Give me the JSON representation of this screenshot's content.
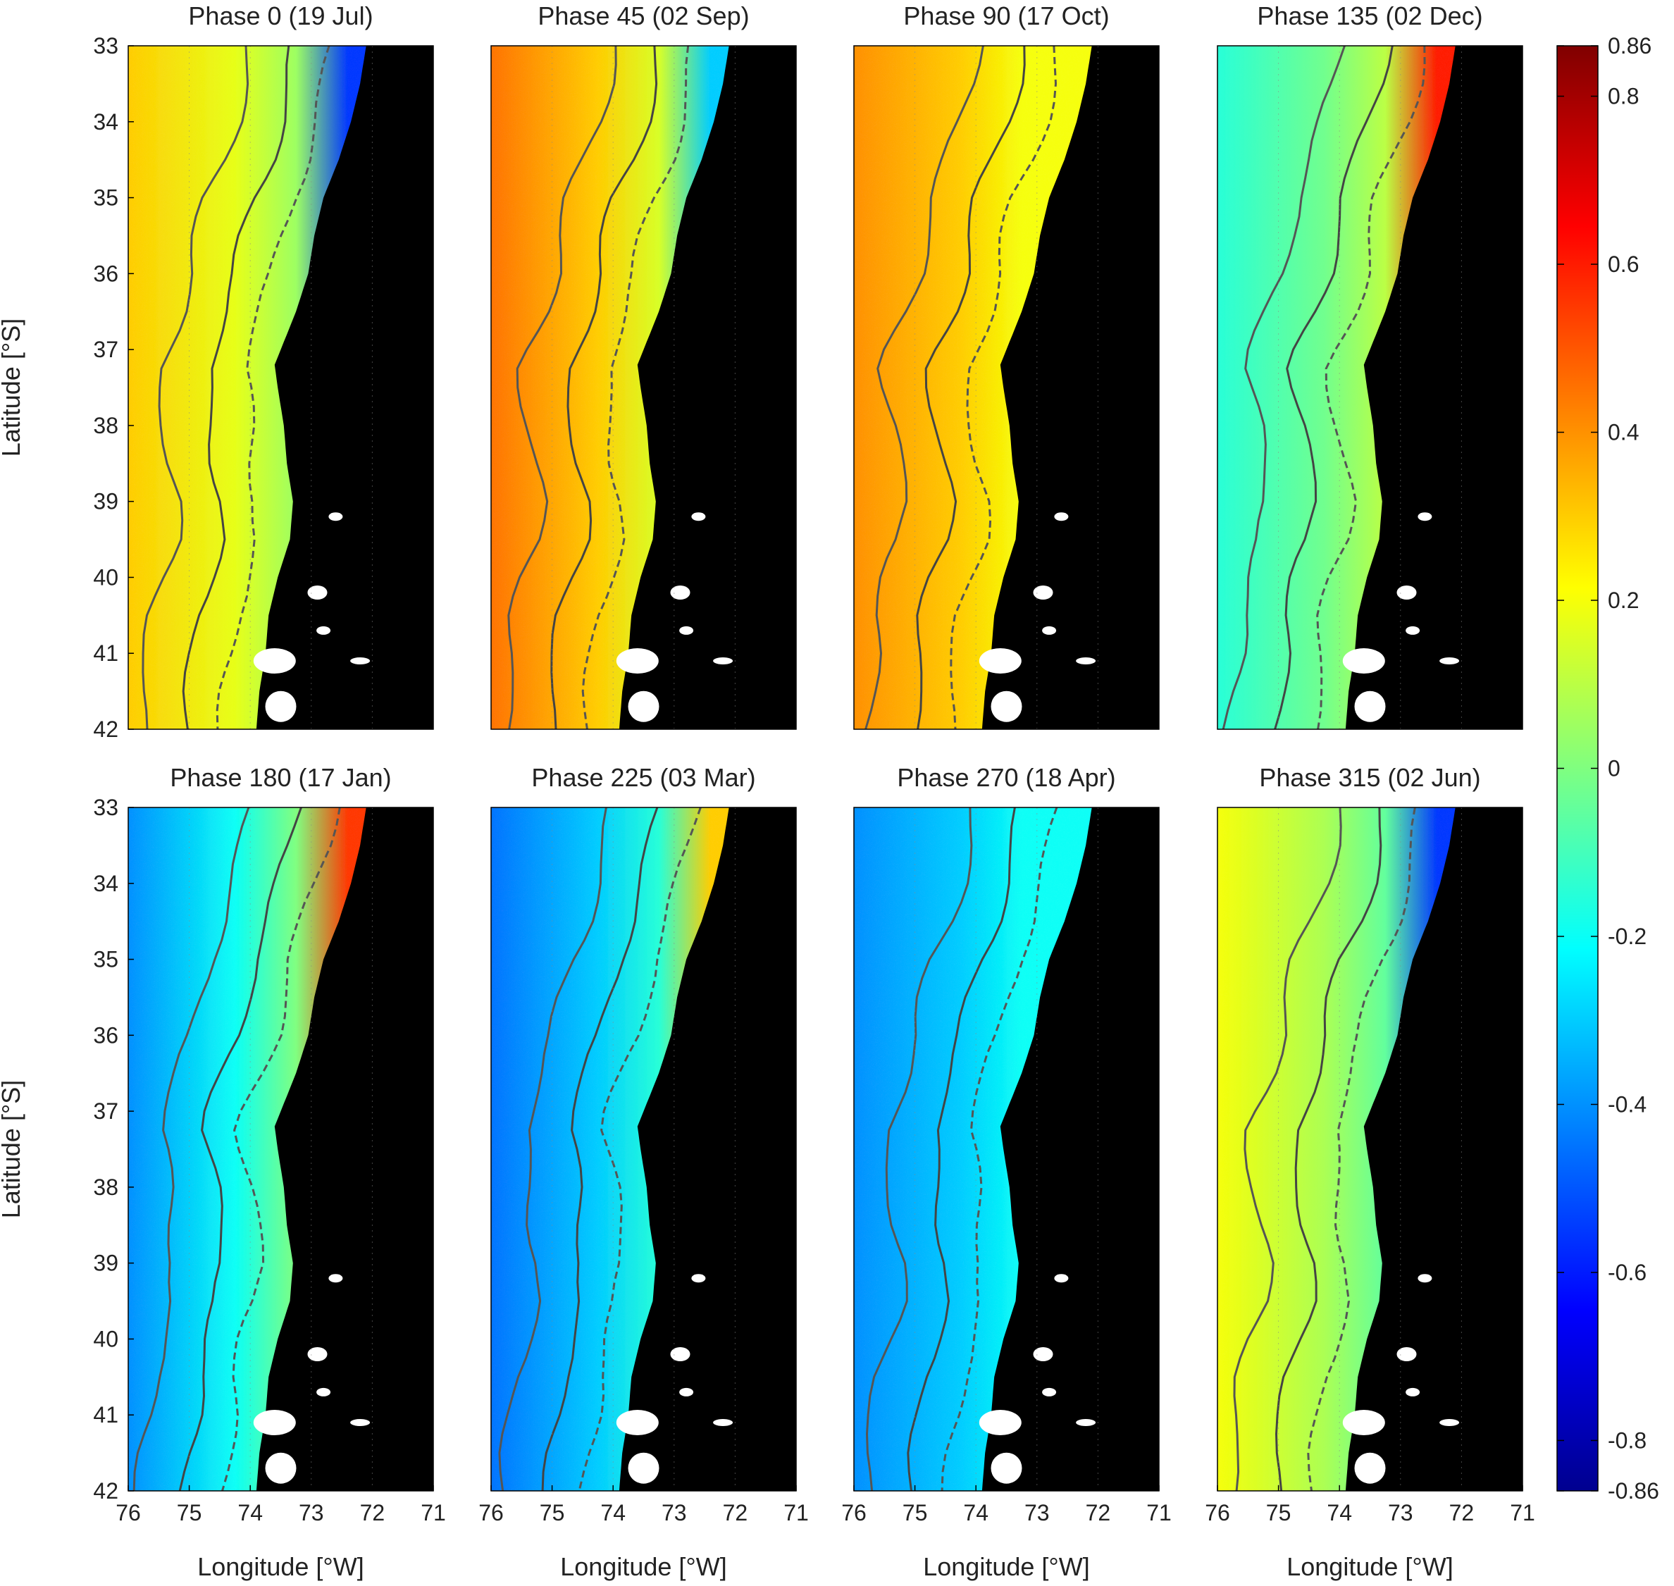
{
  "chart_data": {
    "type": "heatmap",
    "rows": 2,
    "cols": 4,
    "xlabel": "Longitude [°W]",
    "ylabel": "Latitude [°S]",
    "x_ticks": [
      76,
      75,
      74,
      73,
      72,
      71
    ],
    "y_ticks": [
      33,
      34,
      35,
      36,
      37,
      38,
      39,
      40,
      41,
      42
    ],
    "xlim": [
      76,
      71
    ],
    "ylim": [
      33,
      42
    ],
    "colorbar": {
      "min": -0.86,
      "max": 0.86,
      "ticks": [
        "0.86",
        "0.8",
        "0.6",
        "0.4",
        "0.2",
        "0",
        "-0.2",
        "-0.4",
        "-0.6",
        "-0.8",
        "-0.86"
      ],
      "tick_values": [
        0.86,
        0.8,
        0.6,
        0.4,
        0.2,
        0,
        -0.2,
        -0.4,
        -0.6,
        -0.8,
        -0.86
      ],
      "colormap": "jet"
    },
    "land_color": "#000000",
    "panels": [
      {
        "title": "Phase 0 (19 Jul)",
        "phase": 0,
        "offshore": 0.3,
        "mid": 0.05,
        "coast": -0.55
      },
      {
        "title": "Phase 45 (02 Sep)",
        "phase": 45,
        "offshore": 0.45,
        "mid": 0.15,
        "coast": -0.3
      },
      {
        "title": "Phase 90 (17 Oct)",
        "phase": 90,
        "offshore": 0.4,
        "mid": 0.2,
        "coast": 0.2
      },
      {
        "title": "Phase 135 (02 Dec)",
        "phase": 135,
        "offshore": -0.15,
        "mid": 0.1,
        "coast": 0.6
      },
      {
        "title": "Phase 180 (17 Jan)",
        "phase": 180,
        "offshore": -0.4,
        "mid": 0.0,
        "coast": 0.55
      },
      {
        "title": "Phase 225 (03 Mar)",
        "phase": 225,
        "offshore": -0.45,
        "mid": -0.15,
        "coast": 0.3
      },
      {
        "title": "Phase 270 (18 Apr)",
        "phase": 270,
        "offshore": -0.4,
        "mid": -0.2,
        "coast": -0.2
      },
      {
        "title": "Phase 315 (02 Jun)",
        "phase": 315,
        "offshore": 0.2,
        "mid": -0.05,
        "coast": -0.55
      }
    ]
  }
}
